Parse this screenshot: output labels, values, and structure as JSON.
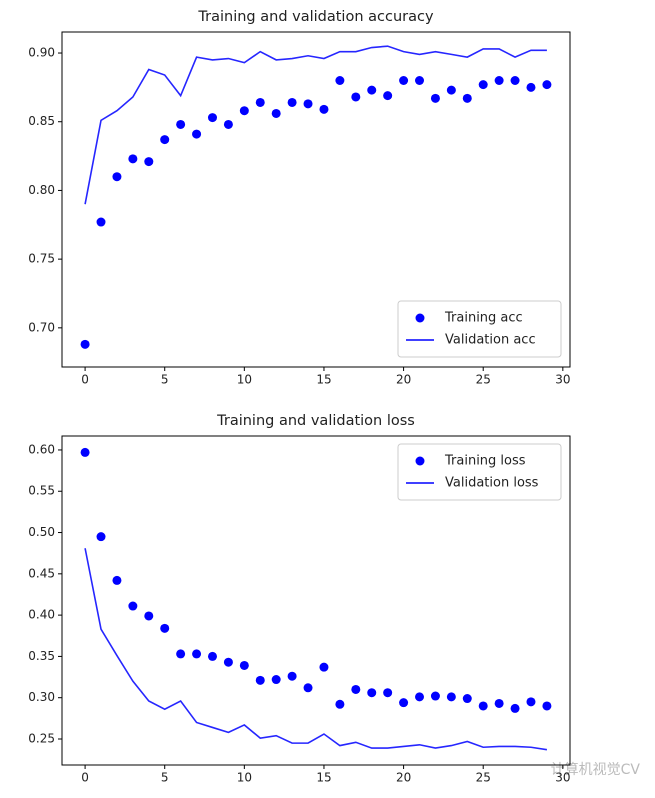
{
  "chart_data": [
    {
      "type": "line",
      "title": "Training and validation accuracy",
      "x": [
        0,
        1,
        2,
        3,
        4,
        5,
        6,
        7,
        8,
        9,
        10,
        11,
        12,
        13,
        14,
        15,
        16,
        17,
        18,
        19,
        20,
        21,
        22,
        23,
        24,
        25,
        26,
        27,
        28,
        29
      ],
      "series": [
        {
          "name": "Training acc",
          "color": "#0000ff",
          "marker": "dot",
          "values": [
            0.688,
            0.777,
            0.81,
            0.823,
            0.821,
            0.837,
            0.848,
            0.841,
            0.853,
            0.848,
            0.858,
            0.864,
            0.856,
            0.864,
            0.863,
            0.859,
            0.88,
            0.868,
            0.873,
            0.869,
            0.88,
            0.88,
            0.867,
            0.873,
            0.867,
            0.877,
            0.88,
            0.88,
            0.875,
            0.877
          ]
        },
        {
          "name": "Validation acc",
          "color": "#0000ff",
          "marker": "line",
          "values": [
            0.79,
            0.851,
            0.858,
            0.868,
            0.888,
            0.884,
            0.869,
            0.897,
            0.895,
            0.896,
            0.893,
            0.901,
            0.895,
            0.896,
            0.898,
            0.896,
            0.901,
            0.901,
            0.904,
            0.905,
            0.901,
            0.899,
            0.901,
            0.899,
            0.897,
            0.903,
            0.903,
            0.897,
            0.902,
            0.902
          ]
        }
      ],
      "xlim": [
        -1.45,
        30.45
      ],
      "xticks": [
        0,
        5,
        10,
        15,
        20,
        25,
        30
      ],
      "ylim": [
        0.6715,
        0.9153
      ],
      "yticks": [
        {
          "value": 0.7,
          "label": "0.70"
        },
        0.75,
        {
          "value": 0.8,
          "label": "0.80"
        },
        0.85,
        {
          "value": 0.9,
          "label": "0.90"
        }
      ],
      "legend": "lower right",
      "grid": false
    },
    {
      "type": "line",
      "title": "Training and validation loss",
      "x": [
        0,
        1,
        2,
        3,
        4,
        5,
        6,
        7,
        8,
        9,
        10,
        11,
        12,
        13,
        14,
        15,
        16,
        17,
        18,
        19,
        20,
        21,
        22,
        23,
        24,
        25,
        26,
        27,
        28,
        29
      ],
      "series": [
        {
          "name": "Training loss",
          "color": "#0000ff",
          "marker": "dot",
          "values": [
            0.597,
            0.495,
            0.442,
            0.411,
            0.399,
            0.384,
            0.353,
            0.353,
            0.35,
            0.343,
            0.339,
            0.321,
            0.322,
            0.326,
            0.312,
            0.337,
            0.292,
            0.31,
            0.306,
            0.306,
            0.294,
            0.301,
            0.302,
            0.301,
            0.299,
            0.29,
            0.293,
            0.287,
            0.295,
            0.29
          ]
        },
        {
          "name": "Validation loss",
          "color": "#0000ff",
          "marker": "line",
          "values": [
            0.481,
            0.383,
            0.351,
            0.32,
            0.296,
            0.286,
            0.296,
            0.27,
            0.264,
            0.258,
            0.267,
            0.251,
            0.254,
            0.245,
            0.245,
            0.256,
            0.242,
            0.246,
            0.239,
            0.239,
            0.241,
            0.243,
            0.239,
            0.242,
            0.247,
            0.24,
            0.241,
            0.241,
            0.24,
            0.237
          ]
        }
      ],
      "xlim": [
        -1.45,
        30.45
      ],
      "xticks": [
        0,
        5,
        10,
        15,
        20,
        25,
        30
      ],
      "ylim": [
        0.2185,
        0.6169
      ],
      "yticks": [
        0.25,
        {
          "value": 0.3,
          "label": "0.30"
        },
        0.35,
        {
          "value": 0.4,
          "label": "0.40"
        },
        0.45,
        {
          "value": 0.5,
          "label": "0.50"
        },
        0.55,
        {
          "value": 0.6,
          "label": "0.60"
        }
      ],
      "legend": "upper right",
      "grid": false
    }
  ],
  "watermark": "计算机视觉CV"
}
